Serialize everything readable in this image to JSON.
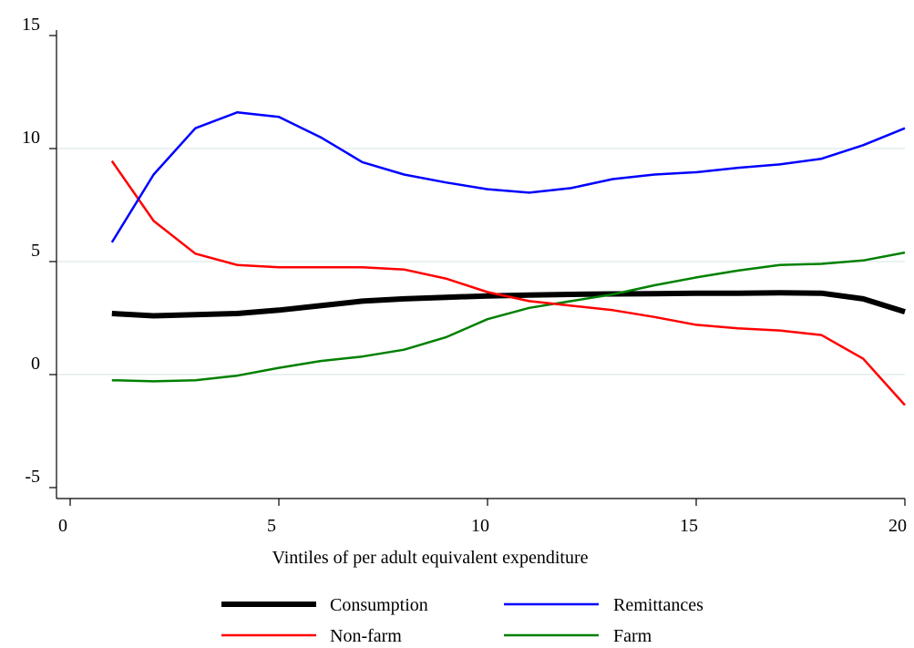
{
  "chart_data": {
    "type": "line",
    "title": "",
    "xlabel": "Vintiles of per adult equivalent expenditure",
    "ylabel": "",
    "xlim": [
      0,
      20
    ],
    "ylim": [
      -5,
      15
    ],
    "xticks": [
      0,
      5,
      10,
      15,
      20
    ],
    "yticks": [
      -5,
      0,
      5,
      10,
      15
    ],
    "grid": true,
    "legend_position": "bottom",
    "x": [
      1,
      2,
      3,
      4,
      5,
      6,
      7,
      8,
      9,
      10,
      11,
      12,
      13,
      14,
      15,
      16,
      17,
      18,
      19,
      20
    ],
    "series": [
      {
        "name": "Consumption",
        "color": "#000000",
        "values": [
          2.7,
          2.6,
          2.65,
          2.7,
          2.85,
          3.05,
          3.25,
          3.35,
          3.42,
          3.48,
          3.52,
          3.55,
          3.57,
          3.58,
          3.6,
          3.6,
          3.62,
          3.6,
          3.35,
          2.78
        ]
      },
      {
        "name": "Remittances",
        "color": "#0000ff",
        "values": [
          5.85,
          8.85,
          10.9,
          11.6,
          11.4,
          10.5,
          9.4,
          8.85,
          8.5,
          8.2,
          8.05,
          8.25,
          8.65,
          8.85,
          8.95,
          9.15,
          9.3,
          9.55,
          10.15,
          10.9
        ]
      },
      {
        "name": "Non-farm",
        "color": "#ff0000",
        "values": [
          9.45,
          6.8,
          5.35,
          4.85,
          4.75,
          4.75,
          4.75,
          4.65,
          4.25,
          3.65,
          3.25,
          3.05,
          2.85,
          2.55,
          2.2,
          2.05,
          1.95,
          1.75,
          0.7,
          -1.35
        ]
      },
      {
        "name": "Farm",
        "color": "#008000",
        "values": [
          -0.25,
          -0.3,
          -0.25,
          -0.05,
          0.3,
          0.6,
          0.8,
          1.1,
          1.65,
          2.45,
          2.95,
          3.25,
          3.55,
          3.95,
          4.3,
          4.6,
          4.85,
          4.9,
          5.05,
          5.4
        ]
      }
    ]
  },
  "legend": {
    "items": [
      {
        "label": "Consumption",
        "color": "#000000",
        "stroke_width_px": 6
      },
      {
        "label": "Remittances",
        "color": "#0000ff",
        "stroke_width_px": 2.5
      },
      {
        "label": "Non-farm",
        "color": "#ff0000",
        "stroke_width_px": 2.5
      },
      {
        "label": "Farm",
        "color": "#008000",
        "stroke_width_px": 2.5
      }
    ]
  }
}
